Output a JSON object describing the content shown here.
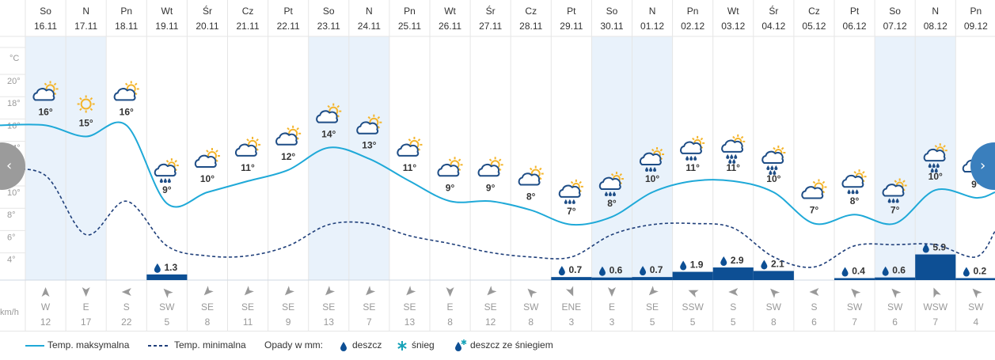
{
  "chart_data": {
    "type": "line",
    "y_unit_label": "°C",
    "y_ticks": [
      "20°",
      "18°",
      "16°",
      "14°",
      "12°",
      "10°",
      "8°",
      "6°",
      "4°"
    ],
    "wind_unit_label": "km/h",
    "days": [
      {
        "dow": "So",
        "date": "16.11",
        "weekend": true,
        "max": 16,
        "min": 11.5,
        "icon": "partly-cloudy",
        "show_temp": "16°",
        "precip": 0,
        "precip_label": "",
        "wind_dir": "W",
        "wind_deg": 270,
        "wind": "12"
      },
      {
        "dow": "N",
        "date": "17.11",
        "weekend": true,
        "max": 15,
        "min": 6.2,
        "icon": "sunny",
        "show_temp": "15°",
        "precip": 0,
        "precip_label": "",
        "wind_dir": "E",
        "wind_deg": 90,
        "wind": "17"
      },
      {
        "dow": "Pn",
        "date": "18.11",
        "weekend": false,
        "max": 16,
        "min": 9.2,
        "icon": "partly-cloudy",
        "show_temp": "16°",
        "precip": 0,
        "precip_label": "",
        "wind_dir": "S",
        "wind_deg": 180,
        "wind": "22"
      },
      {
        "dow": "Wt",
        "date": "19.11",
        "weekend": false,
        "max": 9,
        "min": 5.2,
        "icon": "rain",
        "show_temp": "9°",
        "precip": 1.3,
        "precip_label": "1.3",
        "wind_dir": "SW",
        "wind_deg": 225,
        "wind": "5"
      },
      {
        "dow": "Śr",
        "date": "20.11",
        "weekend": false,
        "max": 10,
        "min": 4.3,
        "icon": "partly-cloudy",
        "show_temp": "10°",
        "precip": 0,
        "precip_label": "",
        "wind_dir": "SE",
        "wind_deg": 135,
        "wind": "8"
      },
      {
        "dow": "Cz",
        "date": "21.11",
        "weekend": false,
        "max": 11,
        "min": 4.3,
        "icon": "partly-cloudy",
        "show_temp": "11°",
        "precip": 0,
        "precip_label": "",
        "wind_dir": "SE",
        "wind_deg": 135,
        "wind": "11"
      },
      {
        "dow": "Pt",
        "date": "22.11",
        "weekend": false,
        "max": 12,
        "min": 5.2,
        "icon": "partly-cloudy",
        "show_temp": "12°",
        "precip": 0,
        "precip_label": "",
        "wind_dir": "SE",
        "wind_deg": 135,
        "wind": "9"
      },
      {
        "dow": "So",
        "date": "23.11",
        "weekend": true,
        "max": 14,
        "min": 7.1,
        "icon": "partly-cloudy",
        "show_temp": "14°",
        "precip": 0,
        "precip_label": "",
        "wind_dir": "SE",
        "wind_deg": 135,
        "wind": "13"
      },
      {
        "dow": "N",
        "date": "24.11",
        "weekend": true,
        "max": 13,
        "min": 7.2,
        "icon": "partly-cloudy",
        "show_temp": "13°",
        "precip": 0,
        "precip_label": "",
        "wind_dir": "SE",
        "wind_deg": 135,
        "wind": "7"
      },
      {
        "dow": "Pn",
        "date": "25.11",
        "weekend": false,
        "max": 11,
        "min": 6.1,
        "icon": "partly-cloudy",
        "show_temp": "11°",
        "precip": 0,
        "precip_label": "",
        "wind_dir": "SE",
        "wind_deg": 135,
        "wind": "13"
      },
      {
        "dow": "Wt",
        "date": "26.11",
        "weekend": false,
        "max": 9.2,
        "min": 5.4,
        "icon": "partly-cloudy",
        "show_temp": "9°",
        "precip": 0,
        "precip_label": "",
        "wind_dir": "E",
        "wind_deg": 90,
        "wind": "8"
      },
      {
        "dow": "Śr",
        "date": "27.11",
        "weekend": false,
        "max": 9.2,
        "min": 4.6,
        "icon": "partly-cloudy",
        "show_temp": "9°",
        "precip": 0,
        "precip_label": "",
        "wind_dir": "SE",
        "wind_deg": 135,
        "wind": "12"
      },
      {
        "dow": "Cz",
        "date": "28.11",
        "weekend": false,
        "max": 8.4,
        "min": 4.2,
        "icon": "partly-cloudy",
        "show_temp": "8°",
        "precip": 0,
        "precip_label": "",
        "wind_dir": "SW",
        "wind_deg": 225,
        "wind": "8"
      },
      {
        "dow": "Pt",
        "date": "29.11",
        "weekend": false,
        "max": 7.1,
        "min": 4.2,
        "icon": "rain",
        "show_temp": "7°",
        "precip": 0.7,
        "precip_label": "0.7",
        "wind_dir": "ENE",
        "wind_deg": 67,
        "wind": "3"
      },
      {
        "dow": "So",
        "date": "30.11",
        "weekend": true,
        "max": 7.8,
        "min": 6.2,
        "icon": "rain",
        "show_temp": "8°",
        "precip": 0.6,
        "precip_label": "0.6",
        "wind_dir": "E",
        "wind_deg": 90,
        "wind": "3"
      },
      {
        "dow": "N",
        "date": "01.12",
        "weekend": true,
        "max": 10,
        "min": 7.1,
        "icon": "rain",
        "show_temp": "10°",
        "precip": 0.7,
        "precip_label": "0.7",
        "wind_dir": "SE",
        "wind_deg": 135,
        "wind": "5"
      },
      {
        "dow": "Pn",
        "date": "02.12",
        "weekend": false,
        "max": 11,
        "min": 7.2,
        "icon": "rain",
        "show_temp": "11°",
        "precip": 1.9,
        "precip_label": "1.9",
        "wind_dir": "SSW",
        "wind_deg": 202,
        "wind": "5"
      },
      {
        "dow": "Wt",
        "date": "03.12",
        "weekend": false,
        "max": 11,
        "min": 6.8,
        "icon": "heavy-rain",
        "show_temp": "11°",
        "precip": 2.9,
        "precip_label": "2.9",
        "wind_dir": "S",
        "wind_deg": 180,
        "wind": "5"
      },
      {
        "dow": "Śr",
        "date": "04.12",
        "weekend": false,
        "max": 10,
        "min": 4.2,
        "icon": "heavy-rain",
        "show_temp": "10°",
        "precip": 2.1,
        "precip_label": "2.1",
        "wind_dir": "SW",
        "wind_deg": 225,
        "wind": "8"
      },
      {
        "dow": "Cz",
        "date": "05.12",
        "weekend": false,
        "max": 7.2,
        "min": 3.3,
        "icon": "partly-cloudy",
        "show_temp": "7°",
        "precip": 0,
        "precip_label": "",
        "wind_dir": "S",
        "wind_deg": 180,
        "wind": "6"
      },
      {
        "dow": "Pt",
        "date": "06.12",
        "weekend": false,
        "max": 8,
        "min": 5.2,
        "icon": "rain",
        "show_temp": "8°",
        "precip": 0.4,
        "precip_label": "0.4",
        "wind_dir": "SW",
        "wind_deg": 225,
        "wind": "7"
      },
      {
        "dow": "So",
        "date": "07.12",
        "weekend": true,
        "max": 7.2,
        "min": 5.3,
        "icon": "rain",
        "show_temp": "7°",
        "precip": 0.6,
        "precip_label": "0.6",
        "wind_dir": "SW",
        "wind_deg": 225,
        "wind": "6"
      },
      {
        "dow": "N",
        "date": "08.12",
        "weekend": true,
        "max": 10.2,
        "min": 5.3,
        "icon": "heavy-rain",
        "show_temp": "10°",
        "precip": 5.9,
        "precip_label": "5.9",
        "wind_dir": "WSW",
        "wind_deg": 247,
        "wind": "7"
      },
      {
        "dow": "Pn",
        "date": "09.12",
        "weekend": false,
        "max": 9.5,
        "min": 4.2,
        "icon": "rain-cloud",
        "show_temp": "9°",
        "precip": 0.2,
        "precip_label": "0.2",
        "wind_dir": "SW",
        "wind_deg": 225,
        "wind": "4"
      }
    ],
    "colors": {
      "max_line": "#1fa9d8",
      "min_line": "#1f3f7a",
      "precip_bar": "#0d4f94",
      "weekend_bg": "#e9f2fb",
      "grid": "#e6e6e6",
      "sun": "#f4b52c",
      "cloud_stroke": "#1e4d86",
      "wind_arrow": "#999999",
      "nav_left": "#9b9b9b",
      "nav_right": "#3a7fbd"
    }
  },
  "legend": {
    "max_label": "Temp. maksymalna",
    "min_label": "Temp. minimalna",
    "precip_title": "Opady w mm:",
    "rain": "deszcz",
    "snow": "śnieg",
    "sleet": "deszcz ze śniegiem"
  },
  "nav": {
    "prev_icon": "chevron-left-icon",
    "next_icon": "chevron-right-icon",
    "prev_glyph": "‹",
    "next_glyph": "›"
  }
}
